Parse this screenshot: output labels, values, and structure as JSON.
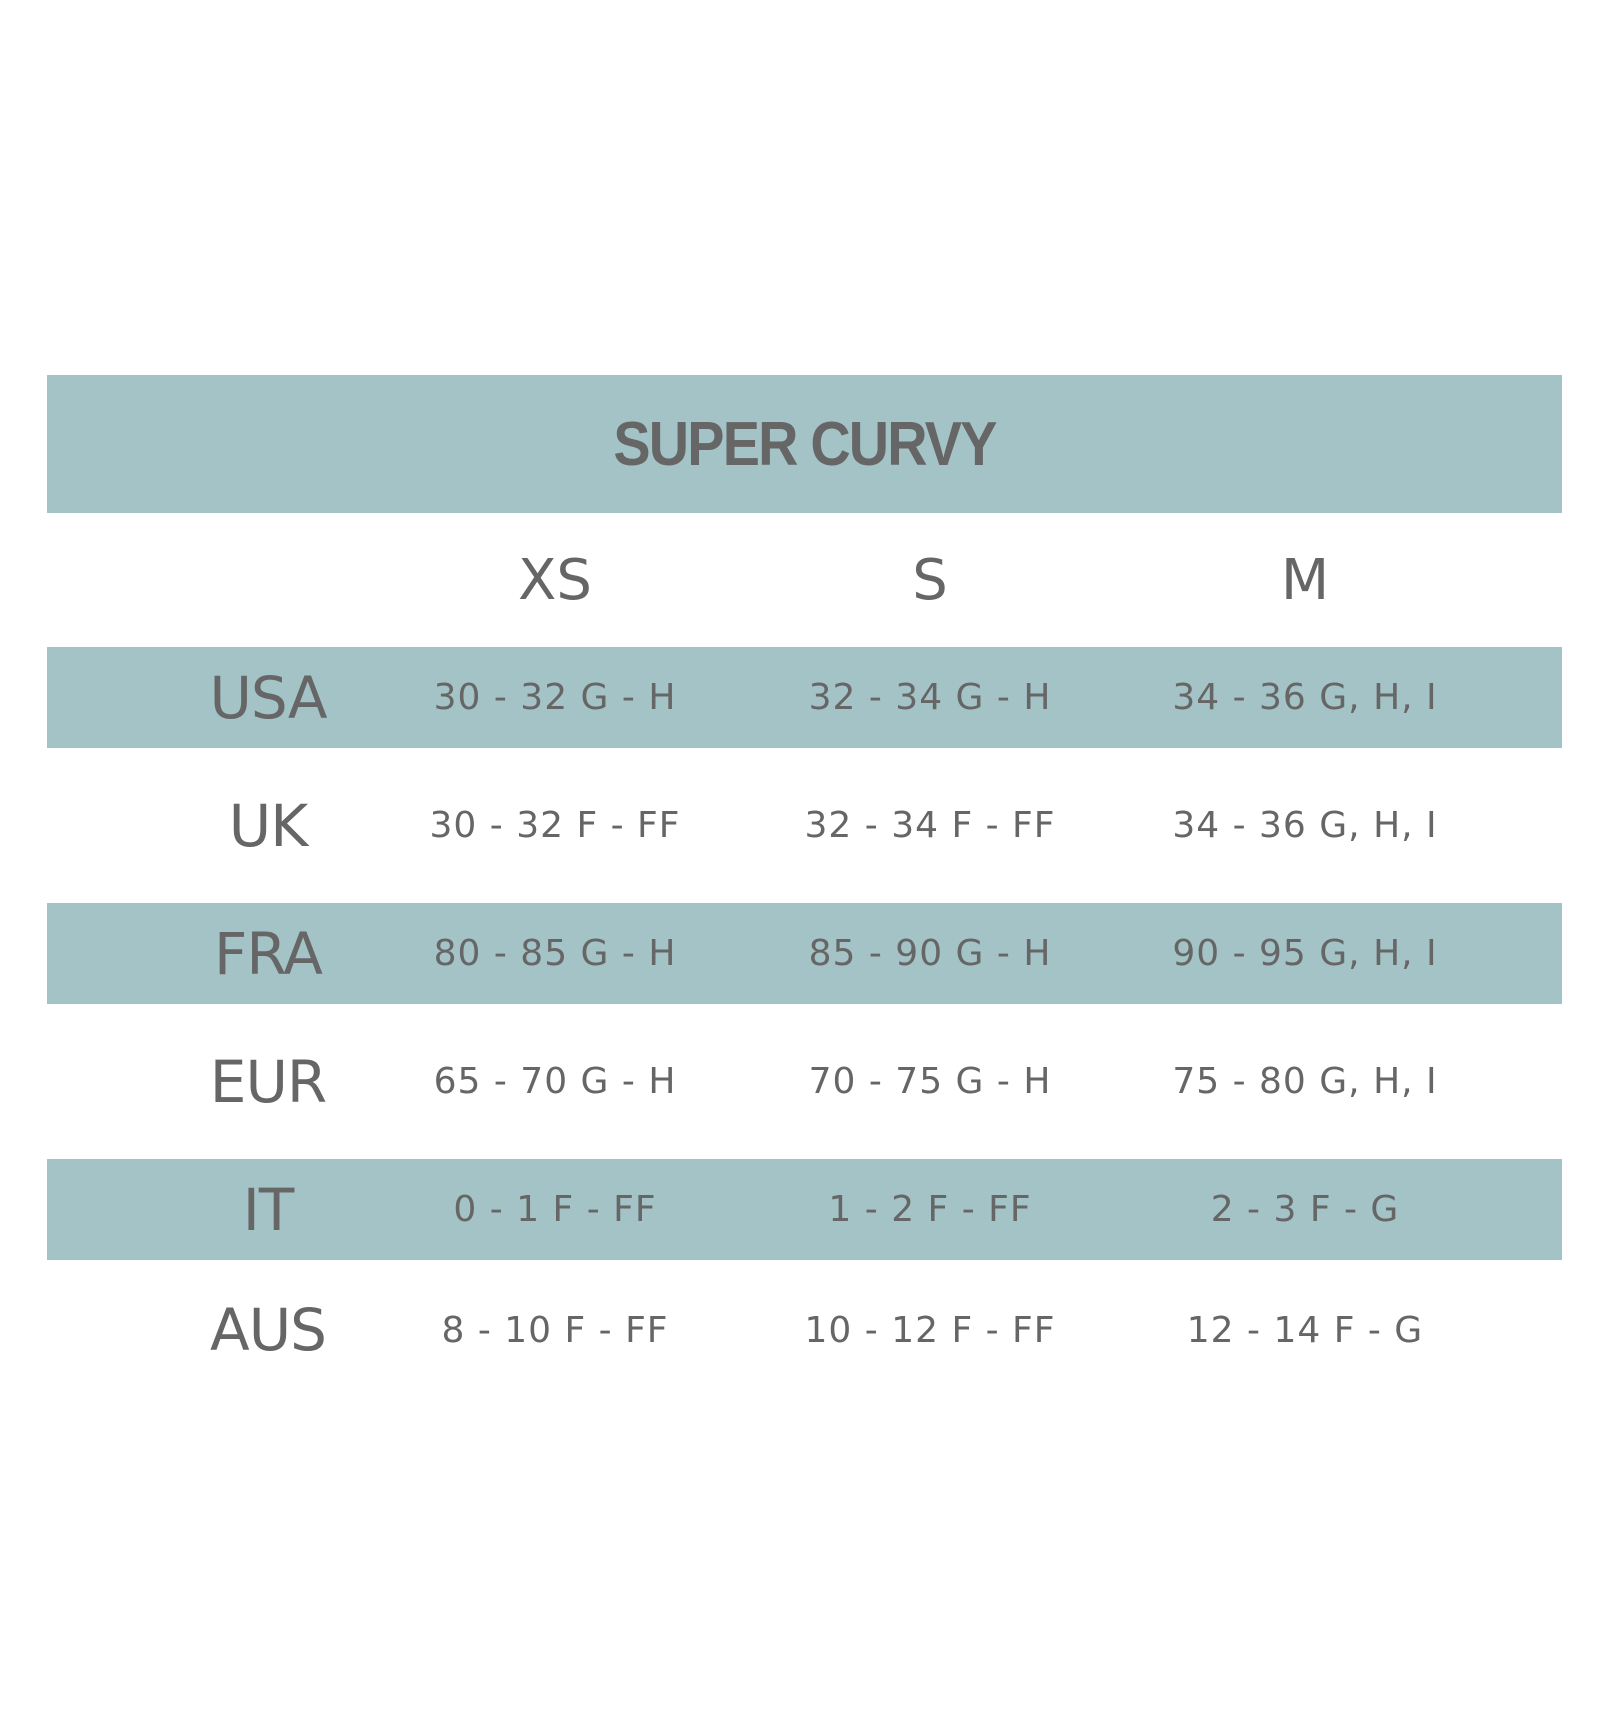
{
  "title": "SUPER CURVY",
  "sizes": [
    "XS",
    "S",
    "M"
  ],
  "rows": [
    {
      "country": "USA",
      "values": [
        "30 - 32 G - H",
        "32 - 34 G - H",
        "34 - 36 G, H, I"
      ]
    },
    {
      "country": "UK",
      "values": [
        "30 - 32 F - FF",
        "32 - 34 F - FF",
        "34 - 36 G, H, I"
      ]
    },
    {
      "country": "FRA",
      "values": [
        "80 - 85 G - H",
        "85 - 90 G - H",
        "90 - 95 G, H, I"
      ]
    },
    {
      "country": "EUR",
      "values": [
        "65 - 70 G - H",
        "70 - 75 G - H",
        "75 - 80 G, H, I"
      ]
    },
    {
      "country": "IT",
      "values": [
        "0 - 1 F - FF",
        "1 - 2 F - FF",
        "2 - 3 F - G"
      ]
    },
    {
      "country": "AUS",
      "values": [
        "8 - 10 F - FF",
        "10 - 12 F - FF",
        "12 - 14 F - G"
      ]
    }
  ],
  "colors": {
    "band": "#a4c3c6",
    "text": "#666666"
  }
}
